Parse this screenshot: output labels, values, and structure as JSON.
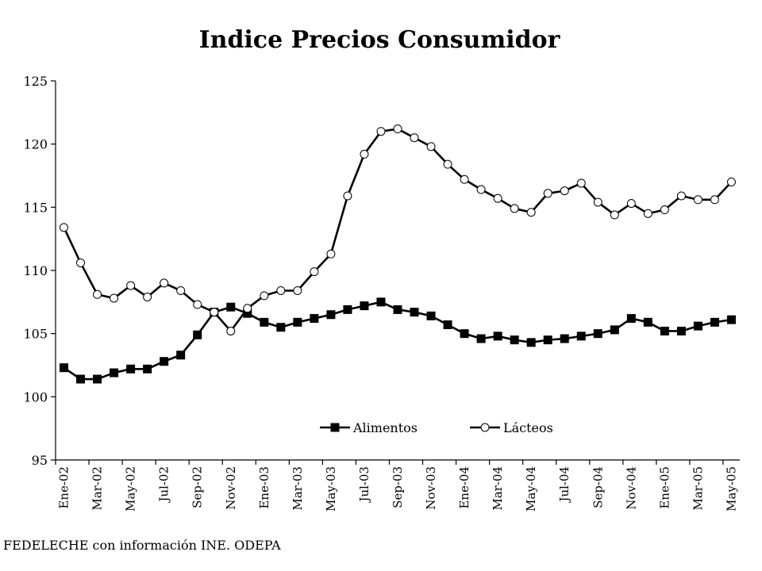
{
  "chart_data": {
    "type": "line",
    "title": "Indice Precios Consumidor",
    "xlabel": "",
    "ylabel": "",
    "ylim": [
      95,
      125
    ],
    "yticks": [
      95,
      100,
      105,
      110,
      115,
      120,
      125
    ],
    "grid": false,
    "legend_position": "bottom-right",
    "x": [
      "Ene-02",
      "Feb-02",
      "Mar-02",
      "Abr-02",
      "May-02",
      "Jun-02",
      "Jul-02",
      "Ago-02",
      "Sep-02",
      "Oct-02",
      "Nov-02",
      "Dic-02",
      "Ene-03",
      "Feb-03",
      "Mar-03",
      "Abr-03",
      "May-03",
      "Jun-03",
      "Jul-03",
      "Ago-03",
      "Sep-03",
      "Oct-03",
      "Nov-03",
      "Dic-03",
      "Ene-04",
      "Feb-04",
      "Mar-04",
      "Abr-04",
      "May-04",
      "Jun-04",
      "Jul-04",
      "Ago-04",
      "Sep-04",
      "Oct-04",
      "Nov-04",
      "Dic-04",
      "Ene-05",
      "Feb-05",
      "Mar-05",
      "Abr-05",
      "May-05"
    ],
    "tick_labels": [
      "Ene-02",
      "Mar-02",
      "May-02",
      "Jul-02",
      "Sep-02",
      "Nov-02",
      "Ene-03",
      "Mar-03",
      "May-03",
      "Jul-03",
      "Sep-03",
      "Nov-03",
      "Ene-04",
      "Mar-04",
      "May-04",
      "Jul-04",
      "Sep-04",
      "Nov-04",
      "Ene-05",
      "Mar-05",
      "May-05"
    ],
    "series": [
      {
        "name": "Alimentos",
        "marker": "filled-square",
        "color": "#000000",
        "values": [
          102.3,
          101.4,
          101.4,
          101.9,
          102.2,
          102.2,
          102.8,
          103.3,
          104.9,
          106.7,
          107.1,
          106.6,
          105.9,
          105.5,
          105.9,
          106.2,
          106.5,
          106.9,
          107.2,
          107.5,
          106.9,
          106.7,
          106.4,
          105.7,
          105.0,
          104.6,
          104.8,
          104.5,
          104.3,
          104.5,
          104.6,
          104.8,
          105.0,
          105.3,
          106.2,
          105.9,
          105.2,
          105.2,
          105.6,
          105.9,
          106.1
        ]
      },
      {
        "name": "Lácteos",
        "marker": "open-circle",
        "color": "#000000",
        "values": [
          113.4,
          110.6,
          108.1,
          107.8,
          108.8,
          107.9,
          109.0,
          108.4,
          107.3,
          106.7,
          105.2,
          107.0,
          108.0,
          108.4,
          108.4,
          109.9,
          111.3,
          115.9,
          119.2,
          121.0,
          121.2,
          120.5,
          119.8,
          118.4,
          117.2,
          116.4,
          115.7,
          114.9,
          114.6,
          116.1,
          116.3,
          116.9,
          115.4,
          114.4,
          115.3,
          114.5,
          114.8,
          115.9,
          115.6,
          115.6,
          117.0
        ]
      }
    ]
  },
  "source_note": "FEDELECHE con información INE. ODEPA"
}
